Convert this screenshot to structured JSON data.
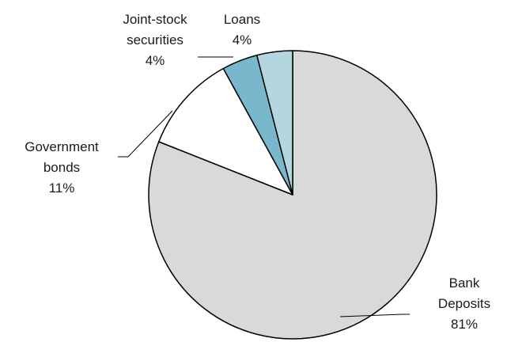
{
  "chart_data": {
    "type": "pie",
    "categories": [
      "Bank Deposits",
      "Government bonds",
      "Joint-stock securities",
      "Loans"
    ],
    "values": [
      81,
      11,
      4,
      4
    ],
    "value_suffix": "%",
    "label_lines": [
      [
        "Bank",
        "Deposits"
      ],
      [
        "Government",
        "bonds"
      ],
      [
        "Joint-stock",
        "securities"
      ],
      [
        "Loans"
      ]
    ],
    "colors": [
      "#d9d9d9",
      "#ffffff",
      "#79b8cc",
      "#b4d6e0"
    ],
    "stroke": "#000000",
    "title": "",
    "legend": "none"
  }
}
